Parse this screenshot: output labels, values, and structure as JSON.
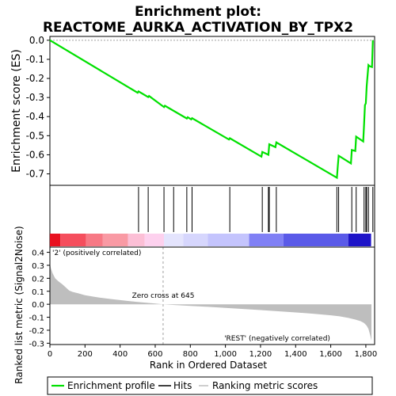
{
  "title_line1": "Enrichment plot:",
  "title_line2": "REACTOME_AURKA_ACTIVATION_BY_TPX2",
  "colors": {
    "enrichment": "#00e000",
    "metric_fill": "#bebebe",
    "zero_line": "#a0a0a0",
    "pos_label": "#ff0000",
    "neg_label": "#0000ff",
    "hits": "#000000"
  },
  "chart_data": [
    {
      "type": "line",
      "ylabel": "Enrichment score (ES)",
      "ylim": [
        -0.76,
        0.02
      ],
      "yticks": [
        0.0,
        -0.1,
        -0.2,
        -0.3,
        -0.4,
        -0.5,
        -0.6,
        -0.7
      ],
      "ytick_labels": [
        "0.0",
        "-0.1",
        "-0.2",
        "-0.3",
        "-0.4",
        "-0.5",
        "-0.6",
        "-0.7"
      ],
      "xlim": [
        0,
        1850
      ],
      "series": [
        {
          "x": [
            0,
            500,
            505,
            560,
            565,
            650,
            655,
            780,
            785,
            805,
            810,
            1020,
            1025,
            1205,
            1210,
            1245,
            1250,
            1285,
            1290,
            1635,
            1640,
            1645,
            1715,
            1720,
            1740,
            1745,
            1785,
            1790,
            1795,
            1800,
            1805,
            1815,
            1820,
            1835,
            1840
          ],
          "y": [
            0.0,
            -0.275,
            -0.268,
            -0.298,
            -0.292,
            -0.35,
            -0.343,
            -0.41,
            -0.403,
            -0.415,
            -0.408,
            -0.52,
            -0.513,
            -0.61,
            -0.585,
            -0.6,
            -0.545,
            -0.56,
            -0.535,
            -0.72,
            -0.66,
            -0.605,
            -0.645,
            -0.575,
            -0.58,
            -0.505,
            -0.53,
            -0.44,
            -0.34,
            -0.33,
            -0.24,
            -0.13,
            -0.135,
            -0.14,
            0.0
          ]
        }
      ]
    },
    {
      "type": "hits",
      "xlim": [
        0,
        1850
      ],
      "hits": [
        505,
        560,
        650,
        705,
        780,
        810,
        1025,
        1210,
        1245,
        1250,
        1290,
        1635,
        1645,
        1720,
        1745,
        1790,
        1800,
        1805,
        1815,
        1840
      ],
      "colorbar": [
        {
          "x0": 0,
          "x1": 60,
          "color": "#e8101f"
        },
        {
          "x0": 60,
          "x1": 205,
          "color": "#f54e5d"
        },
        {
          "x0": 205,
          "x1": 300,
          "color": "#f77985"
        },
        {
          "x0": 300,
          "x1": 445,
          "color": "#f99aa4"
        },
        {
          "x0": 445,
          "x1": 540,
          "color": "#fcbfd6"
        },
        {
          "x0": 540,
          "x1": 650,
          "color": "#fdd1ee"
        },
        {
          "x0": 650,
          "x1": 760,
          "color": "#e4e4fd"
        },
        {
          "x0": 760,
          "x1": 900,
          "color": "#d6d6fd"
        },
        {
          "x0": 900,
          "x1": 1135,
          "color": "#c4c4fd"
        },
        {
          "x0": 1135,
          "x1": 1330,
          "color": "#8080f5"
        },
        {
          "x0": 1330,
          "x1": 1700,
          "color": "#5a5ae8"
        },
        {
          "x0": 1700,
          "x1": 1830,
          "color": "#1e14c8"
        }
      ]
    },
    {
      "type": "area",
      "ylabel": "Ranked list metric (Signal2Noise)",
      "xlabel": "Rank in Ordered Dataset",
      "ylim": [
        -0.31,
        0.44
      ],
      "yticks": [
        0.4,
        0.3,
        0.2,
        0.1,
        0.0,
        -0.1,
        -0.2,
        -0.3
      ],
      "ytick_labels": [
        "0.4",
        "0.3",
        "0.2",
        "0.1",
        "0.0",
        "-0.1",
        "-0.2",
        "-0.3"
      ],
      "xlim": [
        0,
        1850
      ],
      "xticks": [
        0,
        200,
        400,
        600,
        800,
        1000,
        1200,
        1400,
        1600,
        1800
      ],
      "xtick_labels": [
        "0",
        "200",
        "400",
        "600",
        "800",
        "1,000",
        "1,200",
        "1,400",
        "1,600",
        "1,800"
      ],
      "x": [
        0,
        5,
        15,
        30,
        50,
        70,
        90,
        110,
        130,
        160,
        200,
        250,
        300,
        350,
        400,
        450,
        500,
        550,
        600,
        645,
        700,
        800,
        900,
        1000,
        1100,
        1200,
        1300,
        1400,
        1500,
        1600,
        1650,
        1700,
        1740,
        1770,
        1790,
        1805,
        1815,
        1825,
        1832
      ],
      "values": [
        0.32,
        0.28,
        0.24,
        0.2,
        0.175,
        0.155,
        0.13,
        0.105,
        0.095,
        0.085,
        0.07,
        0.058,
        0.048,
        0.04,
        0.032,
        0.025,
        0.018,
        0.012,
        0.006,
        0.0,
        -0.005,
        -0.013,
        -0.02,
        -0.028,
        -0.036,
        -0.045,
        -0.054,
        -0.063,
        -0.073,
        -0.085,
        -0.093,
        -0.105,
        -0.118,
        -0.13,
        -0.145,
        -0.165,
        -0.19,
        -0.24,
        -0.28
      ],
      "annotations": {
        "zero_cross": "Zero cross at 645",
        "pos_label": "'2' (positively correlated)",
        "neg_label": "'REST' (negatively correlated)"
      },
      "zero_cross_x": 645
    }
  ],
  "legend": {
    "items": [
      {
        "label": "Enrichment profile",
        "color": "#00e000"
      },
      {
        "label": "Hits",
        "color": "#000000"
      },
      {
        "label": "Ranking metric scores",
        "color": "#bebebe"
      }
    ]
  }
}
